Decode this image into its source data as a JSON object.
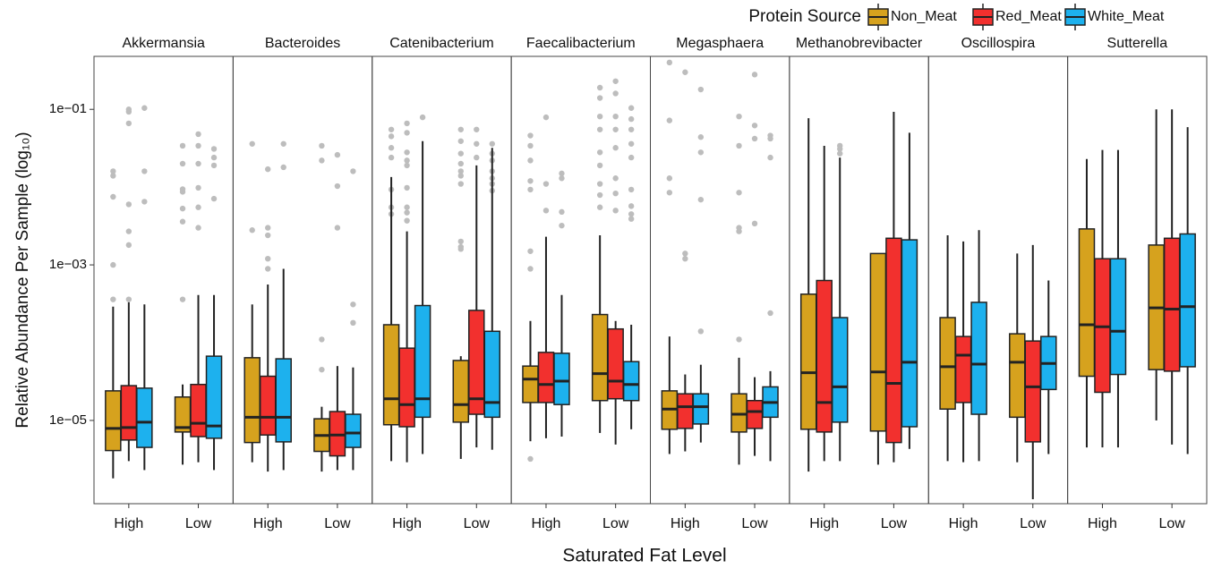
{
  "chart_data": {
    "type": "box",
    "log_y": true,
    "grid": false,
    "x_label": "Saturated Fat Level",
    "y_label": "Relative Abundance Per Sample (log₁₀)",
    "legend_title": "Protein Source",
    "legend_position": "top-right",
    "facets": [
      "Akkermansia",
      "Bacteroides",
      "Catenibacterium",
      "Faecalibacterium",
      "Megasphaera",
      "Methanobrevibacter",
      "Oscillospira",
      "Sutterella"
    ],
    "categories": [
      "High",
      "Low"
    ],
    "ylim": [
      8.5e-07,
      0.48
    ],
    "yticks": [
      {
        "value": 1e-05,
        "label": "1e−05"
      },
      {
        "value": 0.001,
        "label": "1e−03"
      },
      {
        "value": 0.1,
        "label": "1e−01"
      }
    ],
    "outlier_color": "#bdbdbd",
    "series": [
      {
        "name": "Non_Meat",
        "color": "#D6A21E",
        "values": [
          [
            {
              "min": 1.8e-06,
              "q1": 4.1e-06,
              "median": 7.9e-06,
              "q3": 2.4e-05,
              "max": 0.00029,
              "outliers": [
                0.00036,
                0.001,
                0.0075,
                0.016,
                0.014
              ]
            },
            {
              "min": 2.7e-06,
              "q1": 7.1e-06,
              "median": 8.1e-06,
              "q3": 2e-05,
              "max": 2.9e-05,
              "outliers": [
                0.00036,
                0.0036,
                0.0053,
                0.0087,
                0.0094,
                0.02,
                0.034
              ]
            }
          ],
          [
            {
              "min": 2.9e-06,
              "q1": 5.2e-06,
              "median": 1.1e-05,
              "q3": 6.4e-05,
              "max": 0.00031,
              "outliers": [
                0.0028,
                0.036
              ]
            },
            {
              "min": 2.2e-06,
              "q1": 4e-06,
              "median": 6.4e-06,
              "q3": 1.05e-05,
              "max": 1.5e-05,
              "outliers": [
                4.5e-05,
                0.00011,
                0.022,
                0.034
              ]
            }
          ],
          [
            {
              "min": 3e-06,
              "q1": 8.8e-06,
              "median": 1.9e-05,
              "q3": 0.00017,
              "max": 0.0135,
              "outliers": [
                0.055,
                0.045,
                0.032,
                0.024,
                0.0093,
                0.0055,
                0.0045
              ]
            },
            {
              "min": 3.2e-06,
              "q1": 9.5e-06,
              "median": 1.6e-05,
              "q3": 5.9e-05,
              "max": 6.7e-05,
              "outliers": [
                0.002,
                0.0017,
                0.0016,
                0.055,
                0.039,
                0.027,
                0.02,
                0.016,
                0.014,
                0.011
              ]
            }
          ],
          [
            {
              "min": 5.4e-06,
              "q1": 1.7e-05,
              "median": 3.4e-05,
              "q3": 5e-05,
              "max": 0.00019,
              "outliers": [
                3.2e-06,
                0.00089,
                0.0015,
                0.0093,
                0.012,
                0.022,
                0.034,
                0.046
              ]
            },
            {
              "min": 6.9e-06,
              "q1": 1.8e-05,
              "median": 4e-05,
              "q3": 0.00023,
              "max": 0.0024,
              "outliers": [
                0.19,
                0.14,
                0.081,
                0.055,
                0.028,
                0.019,
                0.011,
                0.0079,
                0.0055
              ]
            }
          ],
          [
            {
              "min": 3.7e-06,
              "q1": 7.7e-06,
              "median": 1.4e-05,
              "q3": 2.4e-05,
              "max": 0.00012,
              "outliers": [
                0.4,
                0.072,
                0.013,
                0.0085
              ]
            },
            {
              "min": 2.7e-06,
              "q1": 7.1e-06,
              "median": 1.2e-05,
              "q3": 2.2e-05,
              "max": 6.4e-05,
              "outliers": [
                0.00011,
                0.0027,
                0.003,
                0.0085,
                0.034,
                0.081
              ]
            }
          ],
          [
            {
              "min": 2.2e-06,
              "q1": 7.7e-06,
              "median": 4.1e-05,
              "q3": 0.00042,
              "max": 0.077
            },
            {
              "min": 2.7e-06,
              "q1": 7.3e-06,
              "median": 4.2e-05,
              "q3": 0.0014,
              "max": 0.0014
            }
          ],
          [
            {
              "min": 3e-06,
              "q1": 1.4e-05,
              "median": 4.9e-05,
              "q3": 0.00021,
              "max": 0.0024
            },
            {
              "min": 2.9e-06,
              "q1": 1.1e-05,
              "median": 5.6e-05,
              "q3": 0.00013,
              "max": 0.0014
            }
          ],
          [
            {
              "min": 4.5e-06,
              "q1": 3.7e-05,
              "median": 0.00017,
              "q3": 0.0029,
              "max": 0.023
            },
            {
              "min": 1e-05,
              "q1": 4.5e-05,
              "median": 0.00028,
              "q3": 0.0018,
              "max": 0.1
            }
          ]
        ]
      },
      {
        "name": "Red_Meat",
        "color": "#F2302E",
        "values": [
          [
            {
              "min": 3e-06,
              "q1": 5.6e-06,
              "median": 8.1e-06,
              "q3": 2.8e-05,
              "max": 0.00033,
              "outliers": [
                0.1,
                0.093,
                0.066,
                0.006,
                0.0027,
                0.0018,
                0.00036
              ]
            },
            {
              "min": 2.9e-06,
              "q1": 6.2e-06,
              "median": 9.2e-06,
              "q3": 2.9e-05,
              "max": 0.00041,
              "outliers": [
                0.048,
                0.034,
                0.02,
                0.0098,
                0.0055,
                0.003
              ]
            }
          ],
          [
            {
              "min": 2.2e-06,
              "q1": 6.5e-06,
              "median": 1.1e-05,
              "q3": 3.7e-05,
              "max": 0.00056,
              "outliers": [
                0.017,
                0.003,
                0.0024,
                0.0012,
                0.00089
              ]
            },
            {
              "min": 2.3e-06,
              "q1": 3.5e-06,
              "median": 6.5e-06,
              "q3": 1.3e-05,
              "max": 5e-05,
              "outliers": [
                0.003,
                0.0103,
                0.026
              ]
            }
          ],
          [
            {
              "min": 2.9e-06,
              "q1": 8.3e-06,
              "median": 1.6e-05,
              "q3": 8.5e-05,
              "max": 0.0027,
              "outliers": [
                0.066,
                0.05,
                0.028,
                0.022,
                0.019,
                0.0098,
                0.0055,
                0.0047,
                0.0037
              ]
            },
            {
              "min": 4.5e-06,
              "q1": 1.2e-05,
              "median": 1.9e-05,
              "q3": 0.00026,
              "max": 0.019,
              "outliers": [
                0.055,
                0.036,
                0.024
              ]
            }
          ],
          [
            {
              "min": 5.9e-06,
              "q1": 1.7e-05,
              "median": 2.9e-05,
              "q3": 7.5e-05,
              "max": 0.0023,
              "outliers": [
                0.079,
                0.011,
                0.005
              ]
            },
            {
              "min": 4.9e-06,
              "q1": 1.9e-05,
              "median": 3.2e-05,
              "q3": 0.00015,
              "max": 0.00019,
              "outliers": [
                0.23,
                0.16,
                0.081,
                0.055,
                0.032,
                0.013,
                0.0083,
                0.005
              ]
            }
          ],
          [
            {
              "min": 4e-06,
              "q1": 7.9e-06,
              "median": 1.5e-05,
              "q3": 2.2e-05,
              "max": 3.9e-05,
              "outliers": [
                0.3,
                0.0014,
                0.0012
              ]
            },
            {
              "min": 3.5e-06,
              "q1": 7.9e-06,
              "median": 1.3e-05,
              "q3": 1.8e-05,
              "max": 3.6e-05,
              "outliers": [
                0.28,
                0.062,
                0.042,
                0.0034
              ]
            }
          ],
          [
            {
              "min": 3e-06,
              "q1": 7.1e-06,
              "median": 1.7e-05,
              "q3": 0.00063,
              "max": 0.034
            },
            {
              "min": 2.9e-06,
              "q1": 5.2e-06,
              "median": 3e-05,
              "q3": 0.0022,
              "max": 0.093
            }
          ],
          [
            {
              "min": 2.9e-06,
              "q1": 1.7e-05,
              "median": 6.9e-05,
              "q3": 0.00012,
              "max": 0.002
            },
            {
              "min": 9.7e-07,
              "q1": 5.3e-06,
              "median": 2.7e-05,
              "q3": 0.000105,
              "max": 0.0018
            }
          ],
          [
            {
              "min": 4.5e-06,
              "q1": 2.3e-05,
              "median": 0.00016,
              "q3": 0.0012,
              "max": 0.03
            },
            {
              "min": 4.9e-06,
              "q1": 4.3e-05,
              "median": 0.00027,
              "q3": 0.0022,
              "max": 0.1
            }
          ]
        ]
      },
      {
        "name": "White_Meat",
        "color": "#1DB1EE",
        "values": [
          [
            {
              "min": 2.3e-06,
              "q1": 4.5e-06,
              "median": 9.5e-06,
              "q3": 2.6e-05,
              "max": 0.00031,
              "outliers": [
                0.104,
                0.016,
                0.0065
              ]
            },
            {
              "min": 2.3e-06,
              "q1": 5.9e-06,
              "median": 8.5e-06,
              "q3": 6.7e-05,
              "max": 0.00041,
              "outliers": [
                0.031,
                0.024,
                0.019,
                0.0071
              ]
            }
          ],
          [
            {
              "min": 2.3e-06,
              "q1": 5.3e-06,
              "median": 1.1e-05,
              "q3": 6.2e-05,
              "max": 0.00089,
              "outliers": [
                0.036,
                0.018
              ]
            },
            {
              "min": 2.3e-06,
              "q1": 4.5e-06,
              "median": 6.9e-06,
              "q3": 1.2e-05,
              "max": 4.8e-05,
              "outliers": [
                0.00018,
                0.00031,
                0.016
              ]
            }
          ],
          [
            {
              "min": 3.7e-06,
              "q1": 1.1e-05,
              "median": 1.9e-05,
              "q3": 0.0003,
              "max": 0.039,
              "outliers": [
                0.079
              ]
            },
            {
              "min": 4.2e-06,
              "q1": 1.1e-05,
              "median": 1.7e-05,
              "q3": 0.00014,
              "max": 0.032,
              "outliers": [
                0.036,
                0.027,
                0.022,
                0.016,
                0.013,
                0.011,
                0.009
              ]
            }
          ],
          [
            {
              "min": 6.2e-06,
              "q1": 1.6e-05,
              "median": 3.2e-05,
              "q3": 7.3e-05,
              "max": 0.00041,
              "outliers": [
                0.015,
                0.013,
                0.0048,
                0.0032
              ]
            },
            {
              "min": 7.7e-06,
              "q1": 1.8e-05,
              "median": 2.9e-05,
              "q3": 5.7e-05,
              "max": 0.00017,
              "outliers": [
                0.104,
                0.075,
                0.055,
                0.036,
                0.024,
                0.0093,
                0.0057,
                0.0045,
                0.0039
              ]
            }
          ],
          [
            {
              "min": 5.2e-06,
              "q1": 9e-06,
              "median": 1.5e-05,
              "q3": 2.2e-05,
              "max": 5.2e-05,
              "outliers": [
                0.18,
                0.044,
                0.028,
                0.0069,
                0.00014
              ]
            },
            {
              "min": 3e-06,
              "q1": 1.1e-05,
              "median": 1.7e-05,
              "q3": 2.7e-05,
              "max": 4.3e-05,
              "outliers": [
                0.046,
                0.042,
                0.024,
                0.00024
              ]
            }
          ],
          [
            {
              "min": 3e-06,
              "q1": 9.5e-06,
              "median": 2.7e-05,
              "q3": 0.00021,
              "max": 0.024,
              "outliers": [
                0.027,
                0.031,
                0.034
              ]
            },
            {
              "min": 4.3e-06,
              "q1": 8.3e-06,
              "median": 5.6e-05,
              "q3": 0.0021,
              "max": 0.05
            }
          ],
          [
            {
              "min": 3e-06,
              "q1": 1.2e-05,
              "median": 5.3e-05,
              "q3": 0.00033,
              "max": 0.0028
            },
            {
              "min": 3.7e-06,
              "q1": 2.5e-05,
              "median": 5.4e-05,
              "q3": 0.00012,
              "max": 0.00063
            }
          ],
          [
            {
              "min": 4.5e-06,
              "q1": 3.9e-05,
              "median": 0.00014,
              "q3": 0.0012,
              "max": 0.03
            },
            {
              "min": 3.7e-06,
              "q1": 4.9e-05,
              "median": 0.00029,
              "q3": 0.0025,
              "max": 0.059
            }
          ]
        ]
      }
    ]
  }
}
